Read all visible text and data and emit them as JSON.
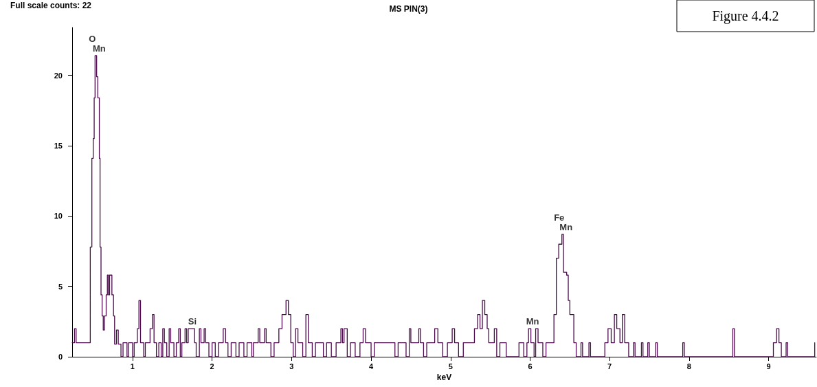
{
  "chart_data": {
    "type": "step",
    "title": "MS PIN(3)",
    "xlabel": "keV",
    "color": "#4b0a4b",
    "x": [
      0.24,
      0.27,
      0.29,
      0.468,
      0.488,
      0.505,
      0.517,
      0.528,
      0.548,
      0.563,
      0.582,
      0.591,
      0.603,
      0.617,
      0.631,
      0.646,
      0.668,
      0.683,
      0.697,
      0.711,
      0.74,
      0.76,
      0.774,
      0.797,
      0.82,
      0.854,
      0.88,
      0.93,
      0.95,
      1.0,
      1.02,
      1.06,
      1.08,
      1.1,
      1.14,
      1.16,
      1.22,
      1.25,
      1.27,
      1.3,
      1.33,
      1.36,
      1.38,
      1.4,
      1.43,
      1.46,
      1.48,
      1.52,
      1.55,
      1.58,
      1.6,
      1.62,
      1.66,
      1.68,
      1.7,
      1.78,
      1.8,
      1.84,
      1.86,
      1.9,
      1.92,
      1.96,
      2.0,
      2.04,
      2.08,
      2.14,
      2.17,
      2.2,
      2.24,
      2.3,
      2.34,
      2.4,
      2.44,
      2.5,
      2.52,
      2.58,
      2.6,
      2.66,
      2.68,
      2.74,
      2.78,
      2.84,
      2.88,
      2.93,
      2.96,
      2.99,
      3.02,
      3.05,
      3.08,
      3.14,
      3.18,
      3.21,
      3.26,
      3.3,
      3.4,
      3.44,
      3.5,
      3.56,
      3.62,
      3.64,
      3.66,
      3.7,
      3.74,
      3.8,
      3.86,
      3.9,
      3.93,
      4.0,
      4.04,
      4.3,
      4.34,
      4.44,
      4.48,
      4.5,
      4.6,
      4.62,
      4.66,
      4.7,
      4.8,
      4.84,
      4.9,
      4.96,
      5.02,
      5.05,
      5.1,
      5.16,
      5.3,
      5.34,
      5.37,
      5.4,
      5.43,
      5.46,
      5.48,
      5.55,
      5.58,
      5.62,
      5.7,
      5.86,
      5.92,
      5.96,
      5.98,
      6.01,
      6.05,
      6.07,
      6.1,
      6.16,
      6.2,
      6.26,
      6.3,
      6.33,
      6.36,
      6.4,
      6.42,
      6.46,
      6.48,
      6.5,
      6.55,
      6.58,
      6.64,
      6.66,
      6.74,
      6.76,
      6.94,
      6.98,
      7.02,
      7.06,
      7.09,
      7.13,
      7.16,
      7.19,
      7.24,
      7.3,
      7.32,
      7.4,
      7.42,
      7.48,
      7.5,
      7.58,
      7.6,
      7.92,
      7.94,
      8.55,
      8.57,
      9.06,
      9.1,
      9.13,
      9.16,
      9.22,
      9.24,
      9.58
    ],
    "values": [
      1,
      2,
      1,
      7.8,
      14.1,
      15.5,
      18.4,
      21.4,
      19.9,
      18.4,
      14.1,
      7.8,
      4.4,
      2.9,
      1.9,
      2.9,
      4.4,
      5.8,
      4.4,
      5.8,
      4.4,
      2.9,
      0.9,
      1.9,
      0.9,
      0,
      1,
      0,
      1,
      0,
      1,
      2,
      4,
      1,
      0,
      1,
      2,
      3,
      1,
      0,
      1,
      0,
      2,
      1,
      0,
      2,
      1,
      0,
      1,
      2,
      0,
      1,
      2,
      1,
      2,
      1,
      0,
      2,
      1,
      2,
      1,
      0,
      1,
      0,
      1,
      2,
      1,
      0,
      1,
      0,
      1,
      0,
      1,
      0,
      1,
      2,
      1,
      2,
      1,
      0,
      1,
      2,
      3,
      4,
      3,
      1,
      0,
      2,
      1,
      0,
      3,
      1,
      0,
      1,
      0,
      1,
      0,
      1,
      2,
      1,
      2,
      0,
      1,
      0,
      1,
      2,
      1,
      0,
      1,
      0,
      1,
      0,
      2,
      1,
      2,
      1,
      0,
      1,
      2,
      1,
      0,
      1,
      2,
      1,
      0,
      1,
      2,
      3,
      2,
      4,
      3,
      2,
      1,
      2,
      0,
      1,
      0,
      1,
      0,
      1,
      2,
      1,
      0,
      2,
      1,
      0,
      1,
      1,
      3,
      7,
      8,
      8.7,
      6,
      5.8,
      4,
      3,
      1,
      0,
      1,
      0,
      1,
      0,
      1,
      2,
      1,
      3,
      2,
      1,
      3,
      1,
      0,
      1,
      0,
      1,
      0,
      1,
      0,
      1,
      0,
      1,
      0,
      2,
      0,
      1,
      2,
      1,
      0,
      1,
      0,
      1
    ],
    "xlim": [
      0.24,
      9.6
    ],
    "ylim": [
      0,
      23.4
    ],
    "xticks": [
      1,
      2,
      3,
      4,
      5,
      6,
      7,
      8,
      9
    ],
    "yticks": [
      0,
      5,
      10,
      15,
      20
    ],
    "grid": false,
    "annotations": [
      "Full scale counts: 22",
      "Figure 4.4.2",
      {
        "text": "O",
        "x": 0.528,
        "y": 21.4
      },
      {
        "text": "Mn",
        "x": 0.528,
        "y": 21.4
      },
      {
        "text": "Si",
        "x": 1.7,
        "y": 2
      },
      {
        "text": "Mn",
        "x": 5.98,
        "y": 2
      },
      {
        "text": "Fe",
        "x": 6.4,
        "y": 8.7
      },
      {
        "text": "Mn",
        "x": 6.4,
        "y": 8.7
      }
    ]
  }
}
